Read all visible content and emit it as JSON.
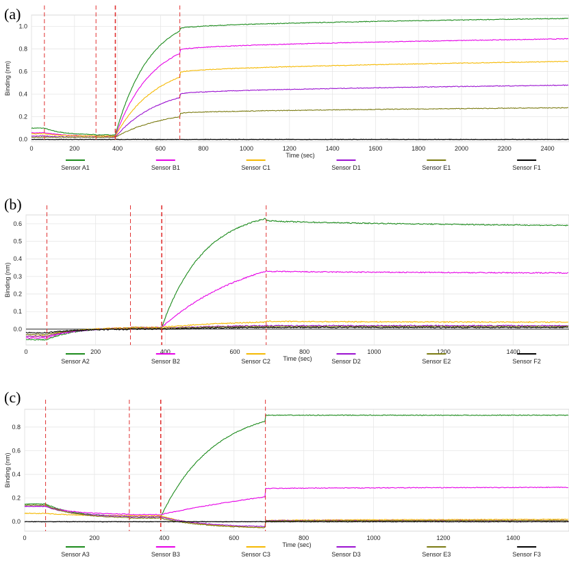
{
  "chart_data": [
    {
      "panel": "(a)",
      "type": "line",
      "xlabel": "Time (sec)",
      "ylabel": "Binding (nm)",
      "xlim": [
        0,
        2500
      ],
      "ylim": [
        -0.02,
        1.1
      ],
      "xticks": [
        0,
        200,
        400,
        600,
        800,
        1000,
        1200,
        1400,
        1600,
        1800,
        2000,
        2200,
        2400
      ],
      "yticks": [
        0.0,
        0.2,
        0.4,
        0.6,
        0.8,
        1.0
      ],
      "step_markers_sec": [
        60,
        300,
        390,
        690
      ],
      "series": [
        {
          "name": "Sensor A1",
          "color": "#1a8a1a",
          "baseline": 0.1,
          "preload": 0.04,
          "assoc_end": 0.96,
          "dissoc_start": 0.98,
          "dissoc_end": 1.07,
          "assoc_k": 160
        },
        {
          "name": "Sensor B1",
          "color": "#e600e6",
          "baseline": 0.06,
          "preload": 0.03,
          "assoc_end": 0.76,
          "dissoc_start": 0.79,
          "dissoc_end": 0.89,
          "assoc_k": 170
        },
        {
          "name": "Sensor C1",
          "color": "#f5b800",
          "baseline": 0.05,
          "preload": 0.03,
          "assoc_end": 0.55,
          "dissoc_start": 0.59,
          "dissoc_end": 0.69,
          "assoc_k": 190
        },
        {
          "name": "Sensor D1",
          "color": "#9a10d0",
          "baseline": 0.03,
          "preload": 0.02,
          "assoc_end": 0.37,
          "dissoc_start": 0.4,
          "dissoc_end": 0.48,
          "assoc_k": 200
        },
        {
          "name": "Sensor E1",
          "color": "#7a7a10",
          "baseline": 0.02,
          "preload": 0.02,
          "assoc_end": 0.2,
          "dissoc_start": 0.23,
          "dissoc_end": 0.28,
          "assoc_k": 230
        },
        {
          "name": "Sensor F1",
          "color": "#000000",
          "baseline": 0.0,
          "preload": 0.0,
          "assoc_end": 0.0,
          "dissoc_start": 0.0,
          "dissoc_end": 0.0,
          "assoc_k": 200
        }
      ]
    },
    {
      "panel": "(b)",
      "type": "line",
      "xlabel": "Time (sec)",
      "ylabel": "Binding (nm)",
      "xlim": [
        0,
        1560
      ],
      "ylim": [
        -0.09,
        0.65
      ],
      "xticks": [
        0,
        200,
        400,
        600,
        800,
        1000,
        1200,
        1400
      ],
      "yticks": [
        0.0,
        0.1,
        0.2,
        0.3,
        0.4,
        0.5,
        0.6
      ],
      "step_markers_sec": [
        60,
        300,
        390,
        690
      ],
      "series": [
        {
          "name": "Sensor A2",
          "color": "#1a8a1a",
          "baseline": -0.06,
          "preload": 0.01,
          "assoc_end": 0.63,
          "dissoc_start": 0.62,
          "dissoc_end": 0.59,
          "assoc_k": 120
        },
        {
          "name": "Sensor B2",
          "color": "#e600e6",
          "baseline": -0.05,
          "preload": 0.01,
          "assoc_end": 0.33,
          "dissoc_start": 0.33,
          "dissoc_end": 0.32,
          "assoc_k": 260
        },
        {
          "name": "Sensor C2",
          "color": "#f5b800",
          "baseline": -0.04,
          "preload": 0.01,
          "assoc_end": 0.04,
          "dissoc_start": 0.045,
          "dissoc_end": 0.04,
          "assoc_k": 200
        },
        {
          "name": "Sensor D2",
          "color": "#9a10d0",
          "baseline": -0.04,
          "preload": 0.005,
          "assoc_end": 0.02,
          "dissoc_start": 0.02,
          "dissoc_end": 0.02,
          "assoc_k": 200
        },
        {
          "name": "Sensor E2",
          "color": "#7a7a10",
          "baseline": -0.03,
          "preload": 0.005,
          "assoc_end": 0.015,
          "dissoc_start": 0.015,
          "dissoc_end": 0.015,
          "assoc_k": 200
        },
        {
          "name": "Sensor F2",
          "color": "#000000",
          "baseline": -0.02,
          "preload": 0.0,
          "assoc_end": 0.01,
          "dissoc_start": 0.01,
          "dissoc_end": 0.01,
          "assoc_k": 200
        }
      ]
    },
    {
      "panel": "(c)",
      "type": "line",
      "xlabel": "Time (sec)",
      "ylabel": "Binding (nm)",
      "xlim": [
        0,
        1560
      ],
      "ylim": [
        -0.08,
        0.95
      ],
      "xticks": [
        0,
        200,
        400,
        600,
        800,
        1000,
        1200,
        1400
      ],
      "yticks": [
        0.0,
        0.2,
        0.4,
        0.6,
        0.8
      ],
      "step_markers_sec": [
        60,
        300,
        390,
        690
      ],
      "series": [
        {
          "name": "Sensor A3",
          "color": "#1a8a1a",
          "baseline": 0.15,
          "preload": 0.04,
          "assoc_end": 0.85,
          "dissoc_start": 0.9,
          "dissoc_end": 0.9,
          "assoc_k": 150
        },
        {
          "name": "Sensor B3",
          "color": "#e600e6",
          "baseline": 0.13,
          "preload": 0.06,
          "assoc_end": 0.21,
          "dissoc_start": 0.28,
          "dissoc_end": 0.29,
          "assoc_k": 600
        },
        {
          "name": "Sensor C3",
          "color": "#f5b800",
          "baseline": 0.07,
          "preload": 0.05,
          "assoc_end": -0.05,
          "dissoc_start": 0.01,
          "dissoc_end": 0.02,
          "assoc_k": 120
        },
        {
          "name": "Sensor D3",
          "color": "#9a10d0",
          "baseline": 0.13,
          "preload": 0.04,
          "assoc_end": -0.04,
          "dissoc_start": 0.01,
          "dissoc_end": 0.01,
          "assoc_k": 120
        },
        {
          "name": "Sensor E3",
          "color": "#7a7a10",
          "baseline": 0.14,
          "preload": 0.03,
          "assoc_end": -0.05,
          "dissoc_start": 0.005,
          "dissoc_end": 0.01,
          "assoc_k": 120
        },
        {
          "name": "Sensor F3",
          "color": "#000000",
          "baseline": 0.0,
          "preload": 0.0,
          "assoc_end": 0.0,
          "dissoc_start": 0.0,
          "dissoc_end": 0.0,
          "assoc_k": 120
        }
      ]
    }
  ]
}
